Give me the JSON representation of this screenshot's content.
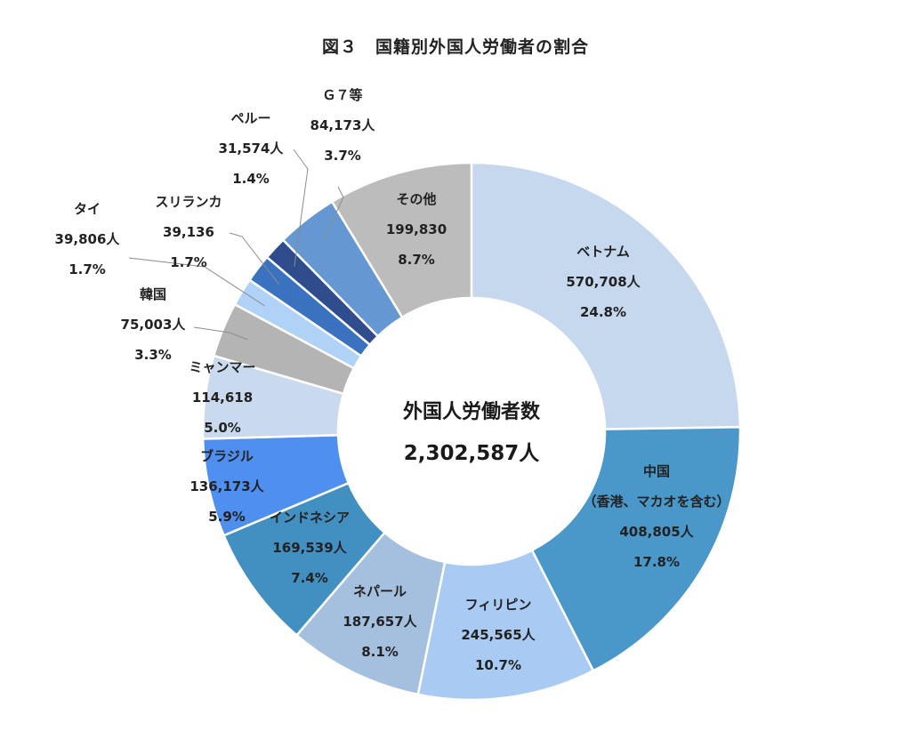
{
  "chart_data": {
    "type": "pie",
    "title": "図３　国籍別外国人労働者の割合",
    "center_label": "外国人労働者数",
    "center_value": "2,302,587人",
    "slices": [
      {
        "name": "ベトナム",
        "value": "570,708人",
        "percent": "24.8%",
        "share": 24.8,
        "color": "#c5d8ee"
      },
      {
        "name": "中国",
        "subname": "（香港、マカオを含む）",
        "value": "408,805人",
        "percent": "17.8%",
        "share": 17.8,
        "color": "#4a97c9"
      },
      {
        "name": "フィリピン",
        "value": "245,565人",
        "percent": "10.7%",
        "share": 10.7,
        "color": "#a9cbf3"
      },
      {
        "name": "ネパール",
        "value": "187,657人",
        "percent": "8.1%",
        "share": 8.1,
        "color": "#a5bfde"
      },
      {
        "name": "インドネシア",
        "value": "169,539人",
        "percent": "7.4%",
        "share": 7.4,
        "color": "#4290c2"
      },
      {
        "name": "ブラジル",
        "value": "136,173人",
        "percent": "5.9%",
        "share": 5.9,
        "color": "#4e8ff0"
      },
      {
        "name": "ミャンマー",
        "value": "114,618",
        "percent": "5.0%",
        "share": 5.0,
        "color": "#c9daee"
      },
      {
        "name": "韓国",
        "value": "75,003人",
        "percent": "3.3%",
        "share": 3.3,
        "color": "#b4b4b4"
      },
      {
        "name": "タイ",
        "value": "39,806人",
        "percent": "1.7%",
        "share": 1.7,
        "color": "#b0d2f6"
      },
      {
        "name": "スリランカ",
        "value": "39,136",
        "percent": "1.7%",
        "share": 1.7,
        "color": "#3a72bf"
      },
      {
        "name": "ペルー",
        "value": "31,574人",
        "percent": "1.4%",
        "share": 1.4,
        "color": "#2f4d8c"
      },
      {
        "name": "Ｇ７等",
        "value": "84,173人",
        "percent": "3.7%",
        "share": 3.7,
        "color": "#6598d2"
      },
      {
        "name": "その他",
        "value": "199,830",
        "percent": "8.7%",
        "share": 8.7,
        "color": "#bcbcbc"
      }
    ]
  }
}
